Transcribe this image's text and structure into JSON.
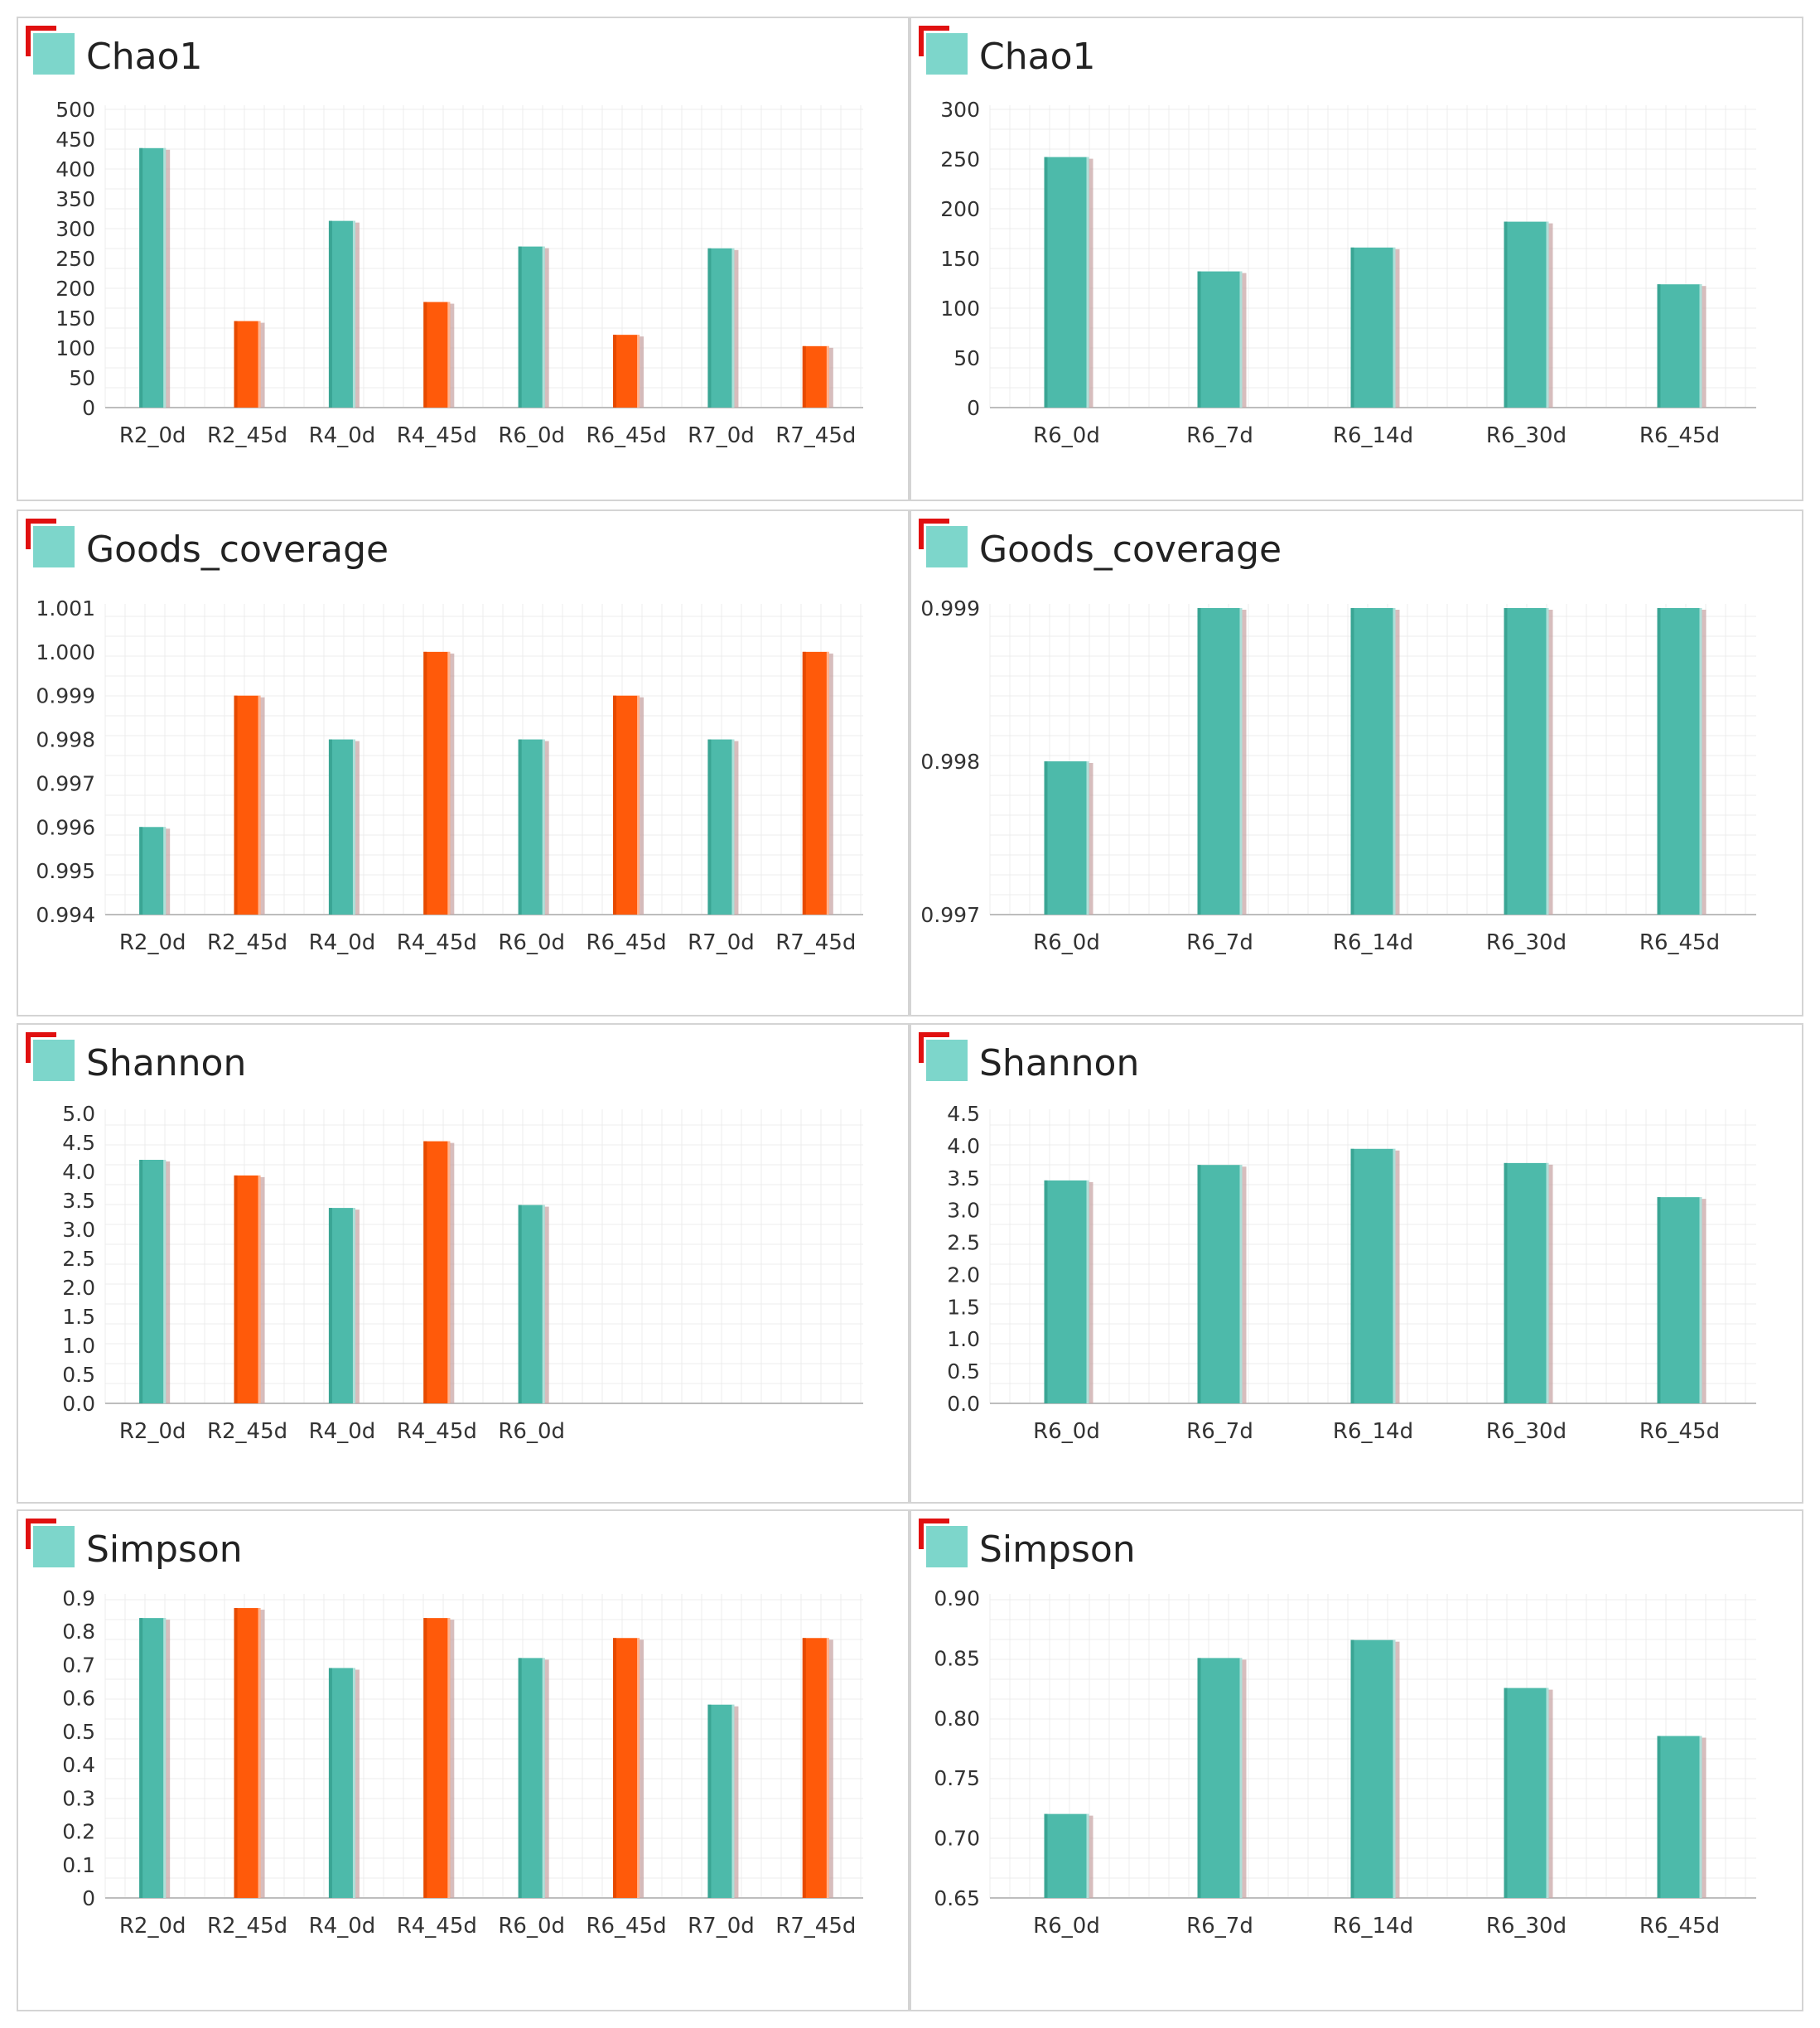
{
  "colors": {
    "teal": "#4dbaaa",
    "teal_dark": "#3aa594",
    "orange": "#ff5a0a",
    "orange_dark": "#e64a00",
    "shadow": "#c9a7a7",
    "grid": "#ececec",
    "axis": "#bdbdbd",
    "marker_red": "#e01010",
    "marker_teal": "#7dd6cb"
  },
  "chart_data": [
    {
      "type": "bar",
      "title": "Chao1",
      "categories": [
        "R2_0d",
        "R2_45d",
        "R4_0d",
        "R4_45d",
        "R6_0d",
        "R6_45d",
        "R7_0d",
        "R7_45d"
      ],
      "values": [
        435,
        145,
        313,
        177,
        270,
        122,
        267,
        103
      ],
      "colors": [
        "teal",
        "orange",
        "teal",
        "orange",
        "teal",
        "orange",
        "teal",
        "orange"
      ],
      "ylim": [
        0,
        500
      ],
      "yticks": [
        "0",
        "50",
        "100",
        "150",
        "200",
        "250",
        "300",
        "350",
        "400",
        "450",
        "500"
      ]
    },
    {
      "type": "bar",
      "title": "Chao1",
      "categories": [
        "R6_0d",
        "R6_7d",
        "R6_14d",
        "R6_30d",
        "R6_45d"
      ],
      "values": [
        252,
        137,
        161,
        187,
        124
      ],
      "colors": [
        "teal",
        "teal",
        "teal",
        "teal",
        "teal"
      ],
      "ylim": [
        0,
        300
      ],
      "yticks": [
        "0",
        "50",
        "100",
        "150",
        "200",
        "250",
        "300"
      ]
    },
    {
      "type": "bar",
      "title": "Goods_coverage",
      "categories": [
        "R2_0d",
        "R2_45d",
        "R4_0d",
        "R4_45d",
        "R6_0d",
        "R6_45d",
        "R7_0d",
        "R7_45d"
      ],
      "values": [
        0.996,
        0.999,
        0.998,
        1.0,
        0.998,
        0.999,
        0.998,
        1.0
      ],
      "colors": [
        "teal",
        "orange",
        "teal",
        "orange",
        "teal",
        "orange",
        "teal",
        "orange"
      ],
      "ylim": [
        0.994,
        1.001
      ],
      "yticks": [
        "0.994",
        "0.995",
        "0.996",
        "0.997",
        "0.998",
        "0.999",
        "1.000",
        "1.001"
      ]
    },
    {
      "type": "bar",
      "title": "Goods_coverage",
      "categories": [
        "R6_0d",
        "R6_7d",
        "R6_14d",
        "R6_30d",
        "R6_45d"
      ],
      "values": [
        0.998,
        0.999,
        0.999,
        0.999,
        0.999
      ],
      "colors": [
        "teal",
        "teal",
        "teal",
        "teal",
        "teal"
      ],
      "ylim": [
        0.997,
        0.999
      ],
      "yticks": [
        "0.997",
        "0.998",
        "0.999"
      ]
    },
    {
      "type": "bar",
      "title": "Shannon",
      "categories": [
        "R2_0d",
        "R2_45d",
        "R4_0d",
        "R4_45d",
        "R6_0d"
      ],
      "values": [
        4.2,
        3.93,
        3.37,
        4.52,
        3.42
      ],
      "colors": [
        "teal",
        "orange",
        "teal",
        "orange",
        "teal"
      ],
      "ylim": [
        0,
        5.0
      ],
      "yticks": [
        "0.0",
        "0.5",
        "1.0",
        "1.5",
        "2.0",
        "2.5",
        "3.0",
        "3.5",
        "4.0",
        "4.5",
        "5.0"
      ],
      "slots": 8
    },
    {
      "type": "bar",
      "title": "Shannon",
      "categories": [
        "R6_0d",
        "R6_7d",
        "R6_14d",
        "R6_30d",
        "R6_45d"
      ],
      "values": [
        3.46,
        3.7,
        3.95,
        3.73,
        3.2
      ],
      "colors": [
        "teal",
        "teal",
        "teal",
        "teal",
        "teal"
      ],
      "ylim": [
        0,
        4.5
      ],
      "yticks": [
        "0.0",
        "0.5",
        "1.0",
        "1.5",
        "2.0",
        "2.5",
        "3.0",
        "3.5",
        "4.0",
        "4.5"
      ]
    },
    {
      "type": "bar",
      "title": "Simpson",
      "categories": [
        "R2_0d",
        "R2_45d",
        "R4_0d",
        "R4_45d",
        "R6_0d",
        "R6_45d",
        "R7_0d",
        "R7_45d"
      ],
      "values": [
        0.84,
        0.87,
        0.69,
        0.84,
        0.72,
        0.78,
        0.58,
        0.78
      ],
      "colors": [
        "teal",
        "orange",
        "teal",
        "orange",
        "teal",
        "orange",
        "teal",
        "orange"
      ],
      "ylim": [
        0,
        0.9
      ],
      "yticks": [
        "0",
        "0.1",
        "0.2",
        "0.3",
        "0.4",
        "0.5",
        "0.6",
        "0.7",
        "0.8",
        "0.9"
      ]
    },
    {
      "type": "bar",
      "title": "Simpson",
      "categories": [
        "R6_0d",
        "R6_7d",
        "R6_14d",
        "R6_30d",
        "R6_45d"
      ],
      "values": [
        0.72,
        0.85,
        0.865,
        0.825,
        0.785
      ],
      "colors": [
        "teal",
        "teal",
        "teal",
        "teal",
        "teal"
      ],
      "ylim": [
        0.65,
        0.9
      ],
      "yticks": [
        "0.65",
        "0.70",
        "0.75",
        "0.80",
        "0.85",
        "0.90"
      ]
    }
  ]
}
